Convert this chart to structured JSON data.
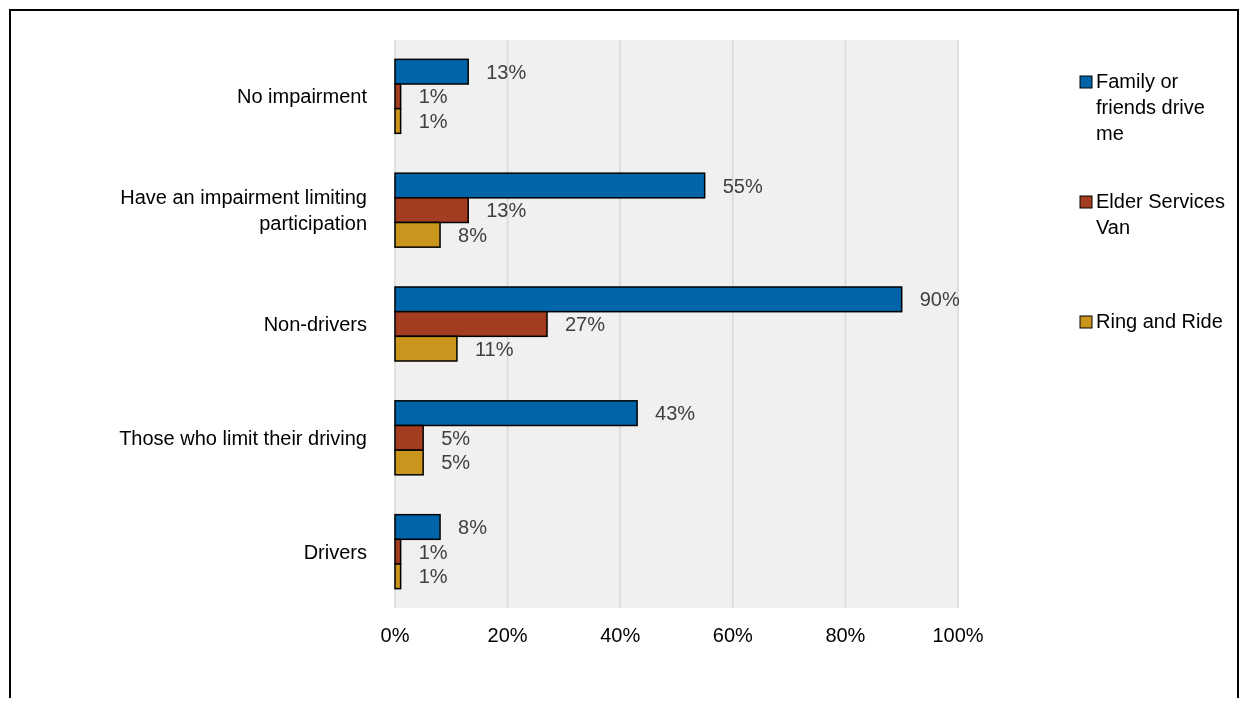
{
  "chart_data": {
    "type": "bar",
    "orientation": "horizontal",
    "categories": [
      "No impairment",
      "Have an impairment limiting participation",
      "Non-drivers",
      "Those who limit their driving",
      "Drivers"
    ],
    "series": [
      {
        "name": "Family or friends drive me",
        "color": "#0065a8",
        "values": [
          13,
          55,
          90,
          43,
          8
        ],
        "value_labels": [
          "13%",
          "55%",
          "90%",
          "43%",
          "8%"
        ]
      },
      {
        "name": "Elder Services Van",
        "color": "#a33c20",
        "values": [
          1,
          13,
          27,
          5,
          1
        ],
        "value_labels": [
          "1%",
          "13%",
          "27%",
          "5%",
          "1%"
        ]
      },
      {
        "name": "Ring and Ride",
        "color": "#c9951c",
        "values": [
          1,
          8,
          11,
          5,
          1
        ],
        "value_labels": [
          "1%",
          "8%",
          "11%",
          "5%",
          "1%"
        ]
      }
    ],
    "xlim": [
      0,
      100
    ],
    "xticks": [
      {
        "value": 0,
        "label": "0%"
      },
      {
        "value": 20,
        "label": "20%"
      },
      {
        "value": 40,
        "label": "40%"
      },
      {
        "value": 60,
        "label": "60%"
      },
      {
        "value": 80,
        "label": "80%"
      },
      {
        "value": 100,
        "label": "100%"
      }
    ],
    "grid": "x",
    "legend": "right"
  }
}
